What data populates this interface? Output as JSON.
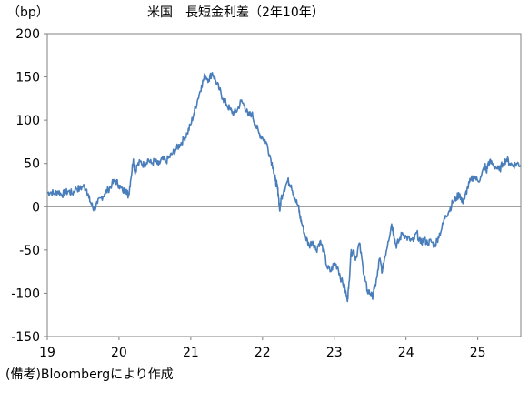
{
  "header": {
    "unit": "（bp）",
    "title": "米国　長短金利差（2年10年）"
  },
  "footer": {
    "source": "(備考)Bloombergにより作成"
  },
  "chart_data": {
    "type": "line",
    "title": "米国　長短金利差（2年10年）",
    "ylabel": "（bp）",
    "xlabel": "",
    "ylim": [
      -150,
      200
    ],
    "xlim": [
      2019.0,
      2025.6
    ],
    "yticks": [
      -150,
      -100,
      -50,
      0,
      50,
      100,
      150,
      200
    ],
    "xticks": [
      {
        "value": 2019,
        "label": "19"
      },
      {
        "value": 2020,
        "label": "20"
      },
      {
        "value": 2021,
        "label": "21"
      },
      {
        "value": 2022,
        "label": "22"
      },
      {
        "value": 2023,
        "label": "23"
      },
      {
        "value": 2024,
        "label": "24"
      },
      {
        "value": 2025,
        "label": "25"
      }
    ],
    "zero_line": true,
    "grid": false,
    "line_color": "#4a7ebb",
    "series": [
      {
        "values": [
          [
            2019.0,
            16
          ],
          [
            2019.05,
            17
          ],
          [
            2019.1,
            15
          ],
          [
            2019.15,
            18
          ],
          [
            2019.2,
            14
          ],
          [
            2019.25,
            16
          ],
          [
            2019.3,
            18
          ],
          [
            2019.35,
            15
          ],
          [
            2019.4,
            22
          ],
          [
            2019.45,
            20
          ],
          [
            2019.5,
            24
          ],
          [
            2019.55,
            20
          ],
          [
            2019.58,
            10
          ],
          [
            2019.62,
            2
          ],
          [
            2019.65,
            -3
          ],
          [
            2019.7,
            4
          ],
          [
            2019.75,
            10
          ],
          [
            2019.8,
            15
          ],
          [
            2019.85,
            20
          ],
          [
            2019.9,
            26
          ],
          [
            2019.95,
            30
          ],
          [
            2020.0,
            25
          ],
          [
            2020.05,
            18
          ],
          [
            2020.1,
            20
          ],
          [
            2020.13,
            12
          ],
          [
            2020.16,
            30
          ],
          [
            2020.2,
            55
          ],
          [
            2020.22,
            40
          ],
          [
            2020.25,
            47
          ],
          [
            2020.3,
            52
          ],
          [
            2020.35,
            48
          ],
          [
            2020.4,
            55
          ],
          [
            2020.45,
            50
          ],
          [
            2020.5,
            53
          ],
          [
            2020.55,
            48
          ],
          [
            2020.6,
            55
          ],
          [
            2020.65,
            52
          ],
          [
            2020.7,
            57
          ],
          [
            2020.75,
            62
          ],
          [
            2020.8,
            67
          ],
          [
            2020.85,
            72
          ],
          [
            2020.9,
            78
          ],
          [
            2020.95,
            85
          ],
          [
            2021.0,
            95
          ],
          [
            2021.05,
            110
          ],
          [
            2021.1,
            125
          ],
          [
            2021.15,
            140
          ],
          [
            2021.2,
            152
          ],
          [
            2021.25,
            147
          ],
          [
            2021.3,
            155
          ],
          [
            2021.35,
            145
          ],
          [
            2021.4,
            135
          ],
          [
            2021.45,
            125
          ],
          [
            2021.5,
            118
          ],
          [
            2021.55,
            112
          ],
          [
            2021.6,
            108
          ],
          [
            2021.65,
            112
          ],
          [
            2021.7,
            122
          ],
          [
            2021.75,
            117
          ],
          [
            2021.8,
            105
          ],
          [
            2021.85,
            108
          ],
          [
            2021.9,
            95
          ],
          [
            2021.95,
            85
          ],
          [
            2022.0,
            80
          ],
          [
            2022.05,
            75
          ],
          [
            2022.1,
            60
          ],
          [
            2022.15,
            45
          ],
          [
            2022.18,
            30
          ],
          [
            2022.2,
            25
          ],
          [
            2022.22,
            15
          ],
          [
            2022.24,
            -5
          ],
          [
            2022.26,
            10
          ],
          [
            2022.3,
            20
          ],
          [
            2022.35,
            30
          ],
          [
            2022.4,
            25
          ],
          [
            2022.45,
            10
          ],
          [
            2022.5,
            0
          ],
          [
            2022.52,
            -10
          ],
          [
            2022.55,
            -20
          ],
          [
            2022.6,
            -35
          ],
          [
            2022.65,
            -45
          ],
          [
            2022.7,
            -40
          ],
          [
            2022.75,
            -50
          ],
          [
            2022.8,
            -40
          ],
          [
            2022.85,
            -50
          ],
          [
            2022.9,
            -70
          ],
          [
            2022.95,
            -75
          ],
          [
            2023.0,
            -65
          ],
          [
            2023.05,
            -70
          ],
          [
            2023.1,
            -85
          ],
          [
            2023.15,
            -95
          ],
          [
            2023.18,
            -108
          ],
          [
            2023.2,
            -95
          ],
          [
            2023.23,
            -55
          ],
          [
            2023.27,
            -50
          ],
          [
            2023.3,
            -60
          ],
          [
            2023.35,
            -42
          ],
          [
            2023.4,
            -70
          ],
          [
            2023.43,
            -85
          ],
          [
            2023.46,
            -97
          ],
          [
            2023.5,
            -100
          ],
          [
            2023.53,
            -104
          ],
          [
            2023.56,
            -95
          ],
          [
            2023.6,
            -80
          ],
          [
            2023.63,
            -60
          ],
          [
            2023.67,
            -75
          ],
          [
            2023.7,
            -60
          ],
          [
            2023.75,
            -40
          ],
          [
            2023.8,
            -20
          ],
          [
            2023.83,
            -32
          ],
          [
            2023.86,
            -45
          ],
          [
            2023.9,
            -40
          ],
          [
            2023.95,
            -30
          ],
          [
            2024.0,
            -35
          ],
          [
            2024.05,
            -38
          ],
          [
            2024.1,
            -40
          ],
          [
            2024.15,
            -30
          ],
          [
            2024.2,
            -42
          ],
          [
            2024.25,
            -38
          ],
          [
            2024.3,
            -42
          ],
          [
            2024.35,
            -40
          ],
          [
            2024.4,
            -45
          ],
          [
            2024.45,
            -35
          ],
          [
            2024.5,
            -25
          ],
          [
            2024.55,
            -10
          ],
          [
            2024.6,
            -5
          ],
          [
            2024.65,
            5
          ],
          [
            2024.7,
            10
          ],
          [
            2024.75,
            15
          ],
          [
            2024.78,
            5
          ],
          [
            2024.82,
            10
          ],
          [
            2024.85,
            20
          ],
          [
            2024.9,
            30
          ],
          [
            2024.95,
            35
          ],
          [
            2025.0,
            30
          ],
          [
            2025.05,
            35
          ],
          [
            2025.1,
            48
          ],
          [
            2025.12,
            40
          ],
          [
            2025.15,
            52
          ],
          [
            2025.2,
            50
          ],
          [
            2025.25,
            46
          ],
          [
            2025.3,
            42
          ],
          [
            2025.35,
            50
          ],
          [
            2025.4,
            55
          ],
          [
            2025.45,
            50
          ],
          [
            2025.5,
            48
          ],
          [
            2025.55,
            50
          ],
          [
            2025.6,
            48
          ]
        ]
      }
    ]
  }
}
